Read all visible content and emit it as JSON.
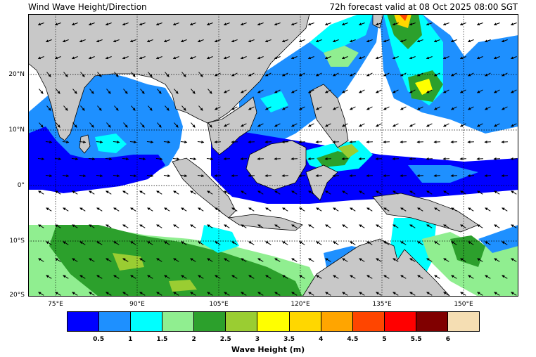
{
  "title": "Wind Wave Height/Direction",
  "forecast_label": "72h forecast valid at 08 Oct 2025 08:00 SGT",
  "lat_labels": [
    "20°N",
    "10°N",
    "0°",
    "10°S",
    "20°S"
  ],
  "lon_labels": [
    "75°E",
    "90°E",
    "105°E",
    "120°E",
    "135°E",
    "150°E"
  ],
  "colorbar": {
    "title": "Wave Height (m)",
    "tick_labels": [
      "0.5",
      "1",
      "1.5",
      "2",
      "2.5",
      "3",
      "3.5",
      "4",
      "4.5",
      "5",
      "5.5",
      "6"
    ],
    "colors": [
      "#0000ff",
      "#1e90ff",
      "#00ffff",
      "#90ee90",
      "#2ca02c",
      "#9acd32",
      "#ffff00",
      "#ffd700",
      "#ffa500",
      "#ff4500",
      "#ff0000",
      "#800000",
      "#f5deb3"
    ]
  },
  "colors": {
    "land": "#c8c8c8",
    "calm_sea": "#ffffff",
    "gridline": "#000000"
  }
}
